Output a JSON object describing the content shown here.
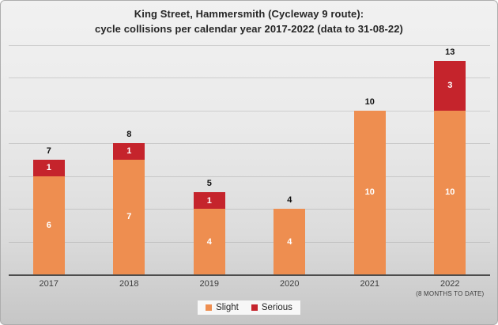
{
  "chart_data": {
    "type": "bar",
    "stacked": true,
    "title": "King Street, Hammersmith (Cycleway 9 route): cycle collisions per calendar year 2017-2022 (data to 31-08-22)",
    "title_lines": [
      "King Street, Hammersmith (Cycleway 9 route):",
      "cycle collisions per calendar year 2017-2022 (data to 31-08-22)"
    ],
    "categories": [
      "2017",
      "2018",
      "2019",
      "2020",
      "2021",
      "2022"
    ],
    "category_sublabels": [
      "",
      "",
      "",
      "",
      "",
      "(8 MONTHS TO DATE)"
    ],
    "series": [
      {
        "name": "Slight",
        "color": "#ee8e50",
        "values": [
          6,
          7,
          4,
          4,
          10,
          10
        ]
      },
      {
        "name": "Serious",
        "color": "#c5242c",
        "values": [
          1,
          1,
          1,
          0,
          0,
          3
        ]
      }
    ],
    "totals": [
      7,
      8,
      5,
      4,
      10,
      13
    ],
    "xlabel": "",
    "ylabel": "",
    "ylim": [
      0,
      14
    ],
    "gridline_step": 2,
    "grid": true,
    "y_axis_labels_visible": false,
    "legend_position": "bottom",
    "data_label_color": "#ffffff",
    "total_label_color": "#111111"
  }
}
